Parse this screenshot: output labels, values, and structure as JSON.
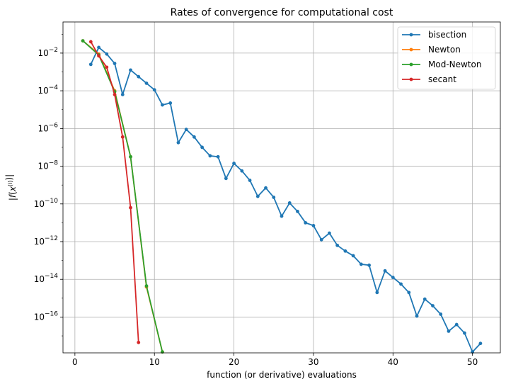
{
  "chart_data": {
    "type": "line",
    "title": "Rates of convergence for computational cost",
    "xlabel": "function (or derivative) evaluations",
    "ylabel": "|f(x(i))|",
    "yscale": "log",
    "xlim": [
      -1.5,
      53.5
    ],
    "ylim_log10": [
      -17.9,
      -0.35
    ],
    "xticks": [
      0,
      10,
      20,
      30,
      40,
      50
    ],
    "yticks_log10": [
      -16,
      -14,
      -12,
      -10,
      -8,
      -6,
      -4,
      -2
    ],
    "grid": true,
    "legend": "upper-right",
    "series": [
      {
        "name": "bisection",
        "color": "#1f77b4",
        "x": [
          2,
          3,
          4,
          5,
          6,
          7,
          8,
          9,
          10,
          11,
          12,
          13,
          14,
          15,
          16,
          17,
          18,
          19,
          20,
          21,
          22,
          23,
          24,
          25,
          26,
          27,
          28,
          29,
          30,
          31,
          32,
          33,
          34,
          35,
          36,
          37,
          38,
          39,
          40,
          41,
          42,
          43,
          44,
          45,
          46,
          47,
          48,
          49,
          50,
          51
        ],
        "y_log10": [
          -2.6,
          -1.7,
          -2.05,
          -2.55,
          -4.2,
          -2.9,
          -3.25,
          -3.6,
          -3.95,
          -4.75,
          -4.65,
          -6.75,
          -6.05,
          -6.45,
          -7.0,
          -7.45,
          -7.5,
          -8.65,
          -7.85,
          -8.25,
          -8.75,
          -9.6,
          -9.15,
          -9.65,
          -10.65,
          -9.95,
          -10.4,
          -11.0,
          -11.15,
          -11.9,
          -11.55,
          -12.2,
          -12.5,
          -12.75,
          -13.2,
          -13.25,
          -14.7,
          -13.55,
          -13.9,
          -14.25,
          -14.7,
          -15.95,
          -15.05,
          -15.4,
          -15.85,
          -16.75,
          -16.4,
          -16.85,
          -17.85,
          -17.4
        ]
      },
      {
        "name": "Newton",
        "color": "#ff7f0e",
        "x": [
          1,
          3,
          5,
          7,
          9,
          11
        ],
        "y_log10": [
          -1.35,
          -2.05,
          -4.0,
          -7.5,
          -14.4,
          -17.85
        ]
      },
      {
        "name": "Mod-Newton",
        "color": "#2ca02c",
        "x": [
          1,
          3,
          5,
          7,
          9,
          11
        ],
        "y_log10": [
          -1.35,
          -2.1,
          -4.05,
          -7.5,
          -14.35,
          -17.85
        ]
      },
      {
        "name": "secant",
        "color": "#d62728",
        "x": [
          2,
          3,
          4,
          5,
          6,
          7,
          8
        ],
        "y_log10": [
          -1.4,
          -2.15,
          -2.75,
          -4.2,
          -6.45,
          -10.2,
          -17.35
        ]
      }
    ]
  }
}
